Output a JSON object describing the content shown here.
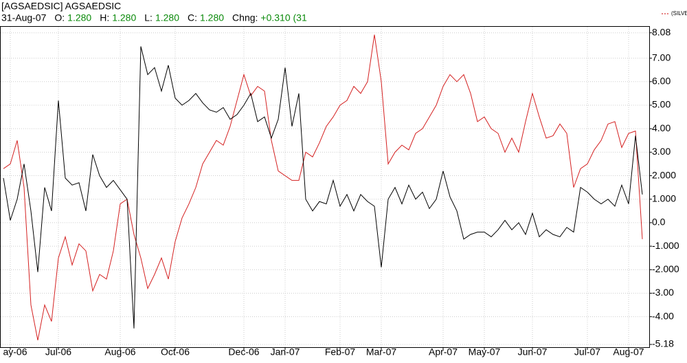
{
  "chart_data": {
    "type": "line",
    "title": "[AGSAEDSIC] AGSAEDSIC",
    "date": "31-Aug-07",
    "stats": [
      {
        "label": "O:",
        "value": "1.280"
      },
      {
        "label": "H:",
        "value": "1.280"
      },
      {
        "label": "L:",
        "value": "1.280"
      },
      {
        "label": "C:",
        "value": "1.280"
      },
      {
        "label": "Chng:",
        "value": "+0.310 (31"
      }
    ],
    "categories": [
      null,
      "ay-06",
      null,
      null,
      null,
      null,
      null,
      null,
      "Jul-06",
      null,
      null,
      null,
      null,
      null,
      null,
      null,
      null,
      "Aug-06",
      null,
      null,
      null,
      null,
      null,
      null,
      null,
      "Oct-06",
      null,
      null,
      null,
      null,
      null,
      null,
      null,
      null,
      null,
      "Dec-06",
      null,
      null,
      null,
      null,
      null,
      "Jan-07",
      null,
      null,
      null,
      null,
      null,
      null,
      null,
      "Feb-07",
      null,
      null,
      null,
      null,
      null,
      "Mar-07",
      null,
      null,
      null,
      null,
      null,
      null,
      null,
      null,
      "Apr-07",
      null,
      null,
      null,
      null,
      null,
      "May-07",
      null,
      null,
      null,
      null,
      null,
      null,
      "Jun-07",
      null,
      null,
      null,
      null,
      null,
      null,
      null,
      "Jul-07",
      null,
      null,
      null,
      null,
      null,
      "Aug-07",
      null,
      null
    ],
    "series": [
      {
        "color": "#000000",
        "values": [
          1.9,
          0.1,
          1.0,
          2.5,
          0.5,
          -2.1,
          1.5,
          0.5,
          5.2,
          1.9,
          1.6,
          1.7,
          0.5,
          2.9,
          2.0,
          1.5,
          1.8,
          1.4,
          1.0,
          -4.5,
          7.5,
          6.3,
          6.6,
          5.6,
          6.7,
          5.3,
          5.0,
          5.2,
          5.5,
          5.1,
          4.8,
          4.7,
          4.9,
          4.4,
          4.6,
          5.0,
          5.5,
          4.3,
          4.5,
          3.6,
          4.4,
          6.6,
          4.1,
          5.5,
          1.0,
          0.5,
          0.9,
          0.8,
          1.8,
          0.7,
          1.2,
          0.5,
          1.2,
          0.9,
          0.7,
          -1.9,
          1.0,
          1.5,
          0.8,
          1.6,
          1.0,
          1.3,
          0.6,
          1.0,
          2.2,
          1.1,
          0.5,
          -0.7,
          -0.5,
          -0.4,
          -0.4,
          -0.6,
          -0.3,
          0.1,
          -0.3,
          0.0,
          -0.5,
          0.4,
          -0.6,
          -0.3,
          -0.5,
          -0.6,
          -0.2,
          -0.4,
          1.5,
          1.3,
          1.0,
          0.8,
          1.0,
          0.7,
          1.6,
          0.8,
          3.7,
          1.2
        ]
      },
      {
        "name": "(SILVER)",
        "color": "#d42020",
        "values": [
          2.3,
          2.5,
          3.5,
          1.5,
          -3.5,
          -5.0,
          -3.5,
          -4.2,
          -1.5,
          -0.6,
          -1.8,
          -0.9,
          -1.2,
          -2.9,
          -2.2,
          -2.4,
          -1.2,
          0.8,
          1.0,
          -0.5,
          -1.5,
          -2.8,
          -2.2,
          -1.5,
          -2.4,
          -0.8,
          0.2,
          0.8,
          1.5,
          2.5,
          3.0,
          3.5,
          3.3,
          4.1,
          5.2,
          6.3,
          5.4,
          5.8,
          5.6,
          3.5,
          2.2,
          2.0,
          1.8,
          1.8,
          3.0,
          2.8,
          3.4,
          4.1,
          4.5,
          5.0,
          5.2,
          5.8,
          5.5,
          6.0,
          8.0,
          6.0,
          2.5,
          3.0,
          3.3,
          3.1,
          3.8,
          4.0,
          4.5,
          5.0,
          5.8,
          6.3,
          6.0,
          6.3,
          5.5,
          4.3,
          4.5,
          4.0,
          3.8,
          3.0,
          3.6,
          3.0,
          4.3,
          5.5,
          4.5,
          3.6,
          3.7,
          4.2,
          3.8,
          1.5,
          2.3,
          2.5,
          3.1,
          3.5,
          4.2,
          4.3,
          3.2,
          3.8,
          3.9,
          -0.7
        ]
      }
    ],
    "ylim": [
      -5.18,
      8.08
    ],
    "yticks": [
      8.08,
      {
        "value": 7,
        "label": "7.00"
      },
      {
        "value": 6,
        "label": "6.00"
      },
      {
        "value": 5,
        "label": "5.00"
      },
      {
        "value": 4,
        "label": "4.00"
      },
      {
        "value": 3,
        "label": "3.00"
      },
      {
        "value": 2,
        "label": "2.000"
      },
      {
        "value": 1,
        "label": "1.000"
      },
      {
        "value": 0,
        "label": "0.0"
      },
      {
        "value": -1,
        "label": "-1.000"
      },
      {
        "value": -2,
        "label": "-2.000"
      },
      {
        "value": -3,
        "label": "-3.00"
      },
      {
        "value": -4,
        "label": "-4.00"
      },
      -5.18
    ],
    "grid": true
  }
}
